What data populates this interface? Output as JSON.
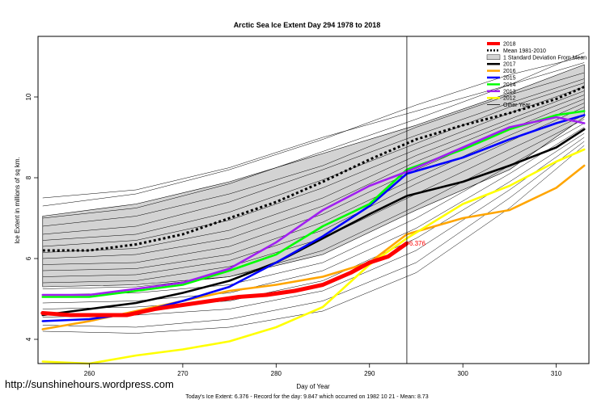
{
  "chart_data": {
    "type": "line",
    "title": "Arctic Sea Ice Extent Day 294 1978 to 2018",
    "xlabel": "Day of Year",
    "ylabel": "Ice Extent in millions of sq km.",
    "xlim": [
      254.5,
      313.5
    ],
    "ylim": [
      3.4,
      11.5
    ],
    "x_ticks": [
      260,
      270,
      280,
      290,
      300,
      310
    ],
    "y_ticks": [
      4,
      6,
      8,
      10
    ],
    "grid": false,
    "legend_position": "top-right",
    "current_day": 294,
    "current_value_label": "6.376",
    "legend": [
      {
        "label": "2018",
        "color": "#ff0000",
        "style": "thick"
      },
      {
        "label": "Mean 1981-2010",
        "color": "#000000",
        "style": "dotted"
      },
      {
        "label": "1 Standard Deviation From Mean",
        "color": "#d3d3d3",
        "style": "band"
      },
      {
        "label": "2017",
        "color": "#000000",
        "style": "solid"
      },
      {
        "label": "2016",
        "color": "#ffa500",
        "style": "solid"
      },
      {
        "label": "2015",
        "color": "#0000ff",
        "style": "solid"
      },
      {
        "label": "2014",
        "color": "#00ff00",
        "style": "solid"
      },
      {
        "label": "2013",
        "color": "#a020f0",
        "style": "solid"
      },
      {
        "label": "2012",
        "color": "#ffff00",
        "style": "solid"
      },
      {
        "label": "Other Year",
        "color": "#000000",
        "style": "thin"
      }
    ],
    "std_band": {
      "x": [
        255,
        265,
        275,
        285,
        295,
        305,
        313
      ],
      "upper": [
        7.05,
        7.35,
        7.9,
        8.6,
        9.3,
        10.1,
        10.8
      ],
      "lower": [
        5.3,
        5.35,
        5.55,
        6.1,
        7.2,
        8.2,
        9.5
      ]
    },
    "series": [
      {
        "name": "Mean 1981-2010",
        "color": "#000000",
        "style": "dotted",
        "x": [
          255,
          260,
          265,
          270,
          275,
          280,
          285,
          290,
          295,
          300,
          305,
          310,
          313
        ],
        "y": [
          6.2,
          6.2,
          6.35,
          6.6,
          7.0,
          7.4,
          7.9,
          8.45,
          8.95,
          9.3,
          9.6,
          9.95,
          10.25
        ]
      },
      {
        "name": "2017",
        "color": "#000000",
        "style": "solid",
        "x": [
          255,
          260,
          265,
          270,
          275,
          280,
          285,
          290,
          294,
          300,
          305,
          310,
          313
        ],
        "y": [
          4.6,
          4.75,
          4.9,
          5.15,
          5.45,
          5.9,
          6.5,
          7.1,
          7.55,
          7.9,
          8.3,
          8.75,
          9.2
        ]
      },
      {
        "name": "2016",
        "color": "#ffa500",
        "style": "solid",
        "x": [
          255,
          260,
          265,
          270,
          275,
          280,
          285,
          290,
          294,
          300,
          305,
          310,
          313
        ],
        "y": [
          4.25,
          4.45,
          4.7,
          4.95,
          5.2,
          5.35,
          5.55,
          5.9,
          6.6,
          7.0,
          7.2,
          7.75,
          8.3
        ]
      },
      {
        "name": "2015",
        "color": "#0000ff",
        "style": "solid",
        "x": [
          255,
          260,
          265,
          270,
          275,
          280,
          285,
          290,
          294,
          300,
          305,
          310,
          313
        ],
        "y": [
          4.45,
          4.5,
          4.65,
          4.95,
          5.3,
          5.9,
          6.55,
          7.3,
          8.1,
          8.5,
          8.95,
          9.35,
          9.55
        ]
      },
      {
        "name": "2014",
        "color": "#00ff00",
        "style": "solid",
        "x": [
          255,
          260,
          265,
          270,
          275,
          280,
          285,
          290,
          294,
          300,
          305,
          310,
          313
        ],
        "y": [
          5.05,
          5.05,
          5.2,
          5.35,
          5.7,
          6.1,
          6.8,
          7.35,
          8.2,
          8.7,
          9.2,
          9.55,
          9.65
        ]
      },
      {
        "name": "2013",
        "color": "#a020f0",
        "style": "solid",
        "x": [
          255,
          260,
          265,
          270,
          275,
          280,
          285,
          290,
          294,
          300,
          305,
          310,
          313
        ],
        "y": [
          5.1,
          5.1,
          5.25,
          5.4,
          5.75,
          6.4,
          7.2,
          7.8,
          8.15,
          8.75,
          9.25,
          9.5,
          9.35
        ]
      },
      {
        "name": "2012",
        "color": "#ffff00",
        "style": "solid",
        "x": [
          255,
          260,
          265,
          270,
          275,
          280,
          285,
          290,
          294,
          300,
          305,
          310,
          313
        ],
        "y": [
          3.45,
          3.4,
          3.6,
          3.75,
          3.95,
          4.3,
          4.8,
          5.85,
          6.5,
          7.35,
          7.8,
          8.4,
          8.7
        ]
      },
      {
        "name": "2018",
        "color": "#ff0000",
        "style": "thick",
        "x": [
          255,
          258,
          261,
          264,
          267,
          270,
          273,
          276,
          279,
          282,
          285,
          288,
          290,
          292,
          294
        ],
        "y": [
          4.65,
          4.6,
          4.6,
          4.6,
          4.75,
          4.85,
          4.95,
          5.05,
          5.1,
          5.2,
          5.35,
          5.65,
          5.9,
          6.05,
          6.376
        ]
      }
    ],
    "other_years": [
      {
        "x": [
          255,
          265,
          275,
          285,
          295,
          305,
          313
        ],
        "y": [
          7.5,
          7.7,
          8.25,
          9.0,
          9.65,
          10.3,
          11.1
        ]
      },
      {
        "x": [
          255,
          265,
          275,
          285,
          295,
          305,
          313
        ],
        "y": [
          7.3,
          7.6,
          8.2,
          8.95,
          9.8,
          10.55,
          11.0
        ]
      },
      {
        "x": [
          255,
          265,
          275,
          285,
          295,
          305,
          313
        ],
        "y": [
          7.0,
          7.25,
          7.85,
          8.65,
          9.45,
          10.3,
          10.85
        ]
      },
      {
        "x": [
          255,
          265,
          275,
          285,
          295,
          305,
          313
        ],
        "y": [
          6.8,
          7.05,
          7.6,
          8.3,
          9.25,
          10.05,
          10.6
        ]
      },
      {
        "x": [
          255,
          265,
          275,
          285,
          295,
          305,
          313
        ],
        "y": [
          6.6,
          6.8,
          7.4,
          8.2,
          9.05,
          9.85,
          10.45
        ]
      },
      {
        "x": [
          255,
          265,
          275,
          285,
          295,
          305,
          313
        ],
        "y": [
          6.45,
          6.6,
          7.15,
          7.95,
          8.85,
          9.75,
          10.35
        ]
      },
      {
        "x": [
          255,
          265,
          275,
          285,
          295,
          305,
          313
        ],
        "y": [
          6.3,
          6.45,
          6.95,
          7.75,
          8.7,
          9.6,
          10.25
        ]
      },
      {
        "x": [
          255,
          265,
          275,
          285,
          295,
          305,
          313
        ],
        "y": [
          6.15,
          6.25,
          6.7,
          7.5,
          8.55,
          9.45,
          10.15
        ]
      },
      {
        "x": [
          255,
          265,
          275,
          285,
          295,
          305,
          313
        ],
        "y": [
          6.0,
          6.1,
          6.5,
          7.3,
          8.4,
          9.35,
          10.05
        ]
      },
      {
        "x": [
          255,
          265,
          275,
          285,
          295,
          305,
          313
        ],
        "y": [
          5.85,
          5.9,
          6.3,
          7.1,
          8.2,
          9.2,
          9.95
        ]
      },
      {
        "x": [
          255,
          265,
          275,
          285,
          295,
          305,
          313
        ],
        "y": [
          5.7,
          5.75,
          6.1,
          6.9,
          8.0,
          9.05,
          9.85
        ]
      },
      {
        "x": [
          255,
          265,
          275,
          285,
          295,
          305,
          313
        ],
        "y": [
          5.55,
          5.6,
          5.95,
          6.7,
          7.85,
          8.9,
          9.75
        ]
      },
      {
        "x": [
          255,
          265,
          275,
          285,
          295,
          305,
          313
        ],
        "y": [
          5.4,
          5.45,
          5.8,
          6.5,
          7.6,
          8.7,
          9.55
        ]
      },
      {
        "x": [
          255,
          265,
          275,
          285,
          295,
          305,
          313
        ],
        "y": [
          5.25,
          5.3,
          5.55,
          6.2,
          7.3,
          8.5,
          9.45
        ]
      },
      {
        "x": [
          255,
          265,
          275,
          285,
          295,
          305,
          313
        ],
        "y": [
          5.1,
          5.15,
          5.35,
          5.9,
          7.0,
          8.3,
          9.35
        ]
      },
      {
        "x": [
          255,
          265,
          275,
          285,
          295,
          305,
          313
        ],
        "y": [
          4.9,
          4.95,
          5.15,
          5.7,
          6.75,
          8.1,
          9.25
        ]
      },
      {
        "x": [
          255,
          265,
          275,
          285,
          295,
          305,
          313
        ],
        "y": [
          4.75,
          4.8,
          4.95,
          5.45,
          6.5,
          7.9,
          9.1
        ]
      },
      {
        "x": [
          255,
          265,
          275,
          285,
          295,
          305,
          313
        ],
        "y": [
          4.55,
          4.6,
          4.75,
          5.2,
          6.2,
          7.7,
          9.0
        ]
      },
      {
        "x": [
          255,
          265,
          275,
          285,
          295,
          305,
          313
        ],
        "y": [
          4.35,
          4.3,
          4.5,
          4.95,
          5.9,
          7.5,
          8.9
        ]
      },
      {
        "x": [
          255,
          265,
          275,
          285,
          295,
          305,
          313
        ],
        "y": [
          4.2,
          4.15,
          4.3,
          4.7,
          5.65,
          7.25,
          8.8
        ]
      }
    ]
  },
  "watermark": "http://sunshinehours.wordpress.com",
  "footer": "Today's Ice Extent: 6.376  - Record for the day: 9.847 which occurred on 1982 10 21  - Mean: 8.73"
}
